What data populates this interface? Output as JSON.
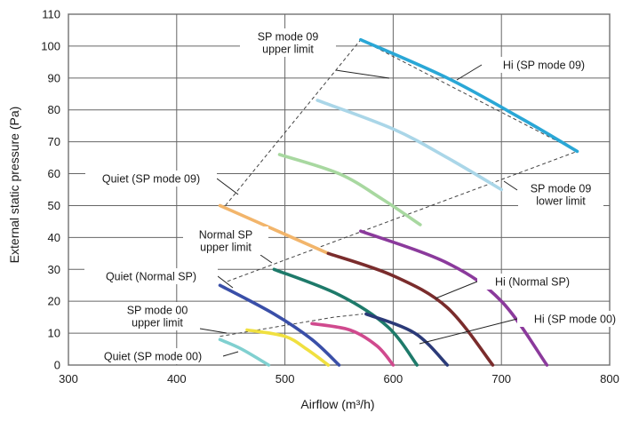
{
  "chart_data": {
    "type": "line",
    "xlabel": "Airflow (m³/h)",
    "ylabel": "External static pressure (Pa)",
    "xlim": [
      300,
      800
    ],
    "ylim": [
      0,
      110
    ],
    "x_ticks": [
      "300",
      "400",
      "500",
      "600",
      "700",
      "800"
    ],
    "y_ticks": [
      "0",
      "10",
      "20",
      "30",
      "40",
      "50",
      "60",
      "70",
      "80",
      "90",
      "100",
      "110"
    ],
    "grid": true,
    "series": [
      {
        "color": "#2aa7d6",
        "points": [
          [
            570,
            102
          ],
          [
            650,
            90
          ],
          [
            720,
            77
          ],
          [
            770,
            67
          ]
        ]
      },
      {
        "color": "#aad6e8",
        "points": [
          [
            530,
            83
          ],
          [
            600,
            74
          ],
          [
            650,
            65
          ],
          [
            700,
            55
          ]
        ]
      },
      {
        "color": "#a8d8a0",
        "points": [
          [
            495,
            66
          ],
          [
            550,
            60
          ],
          [
            590,
            52
          ],
          [
            625,
            44
          ]
        ]
      },
      {
        "color": "#f2b56b",
        "points": [
          [
            440,
            50
          ],
          [
            480,
            44
          ],
          [
            520,
            38
          ],
          [
            540,
            35
          ]
        ]
      },
      {
        "color": "#7a2c2c",
        "points": [
          [
            540,
            35
          ],
          [
            600,
            28
          ],
          [
            650,
            18
          ],
          [
            692,
            0
          ]
        ]
      },
      {
        "color": "#8b3a9c",
        "points": [
          [
            570,
            42
          ],
          [
            650,
            32
          ],
          [
            700,
            20
          ],
          [
            742,
            0
          ]
        ]
      },
      {
        "color": "#1e7a6a",
        "points": [
          [
            490,
            30
          ],
          [
            550,
            22
          ],
          [
            595,
            12
          ],
          [
            622,
            0
          ]
        ]
      },
      {
        "color": "#3a4fa8",
        "points": [
          [
            440,
            25
          ],
          [
            490,
            16
          ],
          [
            525,
            8
          ],
          [
            550,
            0
          ]
        ]
      },
      {
        "color": "#2b3a78",
        "points": [
          [
            575,
            16
          ],
          [
            620,
            10
          ],
          [
            650,
            0
          ]
        ]
      },
      {
        "color": "#d04a8e",
        "points": [
          [
            525,
            13
          ],
          [
            560,
            11
          ],
          [
            585,
            6
          ],
          [
            600,
            0
          ]
        ]
      },
      {
        "color": "#f0e040",
        "points": [
          [
            465,
            11
          ],
          [
            500,
            9
          ],
          [
            520,
            5
          ],
          [
            540,
            0
          ]
        ]
      },
      {
        "color": "#80d0d0",
        "points": [
          [
            440,
            8
          ],
          [
            460,
            5
          ],
          [
            485,
            0
          ]
        ]
      }
    ],
    "limit_lines": [
      {
        "style": "dashed",
        "points": [
          [
            445,
            50
          ],
          [
            570,
            102
          ],
          [
            770,
            67
          ],
          [
            445,
            26
          ]
        ]
      },
      {
        "style": "dashed",
        "points": [
          [
            440,
            9
          ],
          [
            545,
            15
          ],
          [
            572,
            16
          ]
        ]
      }
    ],
    "annotations": [
      {
        "text": "SP mode 09",
        "color": "#2a2a2a"
      },
      {
        "text": "upper limit",
        "color": "#2a2a2a"
      },
      {
        "text": "Hi (SP mode 09)",
        "color": "#2a2a2a"
      },
      {
        "text": "Quiet (SP mode 09)",
        "color": "#2a2a2a"
      },
      {
        "text": "SP mode 09",
        "color": "#2a2a2a"
      },
      {
        "text": "lower limit",
        "color": "#2a2a2a"
      },
      {
        "text": "Normal SP",
        "color": "#2a2a2a"
      },
      {
        "text": "upper limit",
        "color": "#2a2a2a"
      },
      {
        "text": "Quiet (Normal SP)",
        "color": "#2a2a2a"
      },
      {
        "text": "Hi (Normal SP)",
        "color": "#2a2a2a"
      },
      {
        "text": "SP mode 00",
        "color": "#2a2a2a"
      },
      {
        "text": "upper limit",
        "color": "#2a2a2a"
      },
      {
        "text": "Hi (SP mode 00)",
        "color": "#2a2a2a"
      },
      {
        "text": "Quiet (SP mode 00)",
        "color": "#2a2a2a"
      }
    ]
  }
}
